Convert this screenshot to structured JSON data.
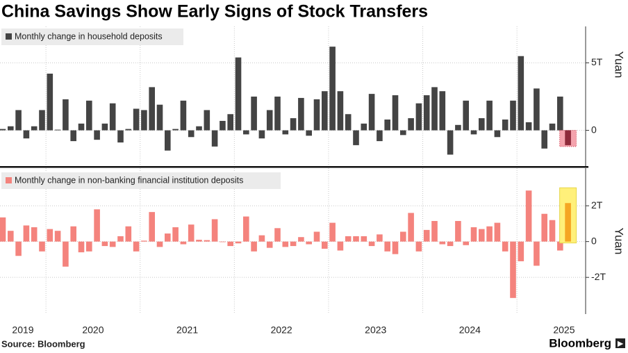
{
  "title": "China Savings Show Early Signs of Stock Transfers",
  "source": "Source: Bloomberg",
  "brand": "Bloomberg",
  "chart_data": [
    {
      "type": "bar",
      "categories": [
        "2019",
        null,
        null,
        null,
        null,
        null,
        null,
        null,
        null,
        null,
        null,
        null,
        "2020",
        null,
        null,
        null,
        null,
        null,
        null,
        null,
        null,
        null,
        null,
        null,
        "2021",
        null,
        null,
        null,
        null,
        null,
        null,
        null,
        null,
        null,
        null,
        null,
        "2022",
        null,
        null,
        null,
        null,
        null,
        null,
        null,
        null,
        null,
        null,
        null,
        "2023",
        null,
        null,
        null,
        null,
        null,
        null,
        null,
        null,
        null,
        null,
        null,
        "2024",
        null,
        null,
        null,
        null,
        null,
        null,
        null,
        null,
        null,
        null,
        null,
        "2025"
      ],
      "series": [
        {
          "name": "Monthly change in household deposits",
          "color": "#444444",
          "highlight_color": "#8e2a3a",
          "highlight_box_color": "#f4a3ad",
          "values": [
            0.1,
            0.3,
            1.5,
            -0.6,
            0.3,
            1.5,
            4.2,
            0.05,
            2.3,
            -0.8,
            0.5,
            2.2,
            -0.7,
            0.5,
            2.0,
            -0.9,
            0.1,
            1.6,
            1.5,
            3.2,
            1.9,
            -1.5,
            0.1,
            2.2,
            -0.5,
            0.3,
            1.5,
            -1.2,
            0.7,
            1.2,
            5.4,
            -0.3,
            2.5,
            -0.6,
            1.5,
            2.5,
            -0.3,
            0.9,
            2.4,
            -0.4,
            2.3,
            2.9,
            6.2,
            2.9,
            1.2,
            -1.1,
            0.5,
            2.7,
            -0.8,
            0.8,
            2.6,
            -0.35,
            0.9,
            2.0,
            2.6,
            3.2,
            2.9,
            -1.8,
            0.4,
            2.2,
            -0.3,
            0.9,
            2.2,
            -0.5,
            0.8,
            2.2,
            5.5,
            0.6,
            3.1,
            -1.35,
            0.5,
            2.5,
            -1.1
          ]
        }
      ],
      "ylim": [
        -2.7,
        7.7
      ],
      "yticks": [
        0,
        {
          "value": 5,
          "label": "5T"
        }
      ],
      "ylabel": "Yuan",
      "grid": true
    },
    {
      "type": "bar",
      "categories": [
        "2019",
        null,
        null,
        null,
        null,
        null,
        null,
        null,
        null,
        null,
        null,
        null,
        "2020",
        null,
        null,
        null,
        null,
        null,
        null,
        null,
        null,
        null,
        null,
        null,
        "2021",
        null,
        null,
        null,
        null,
        null,
        null,
        null,
        null,
        null,
        null,
        null,
        "2022",
        null,
        null,
        null,
        null,
        null,
        null,
        null,
        null,
        null,
        null,
        null,
        "2023",
        null,
        null,
        null,
        null,
        null,
        null,
        null,
        null,
        null,
        null,
        null,
        "2024",
        null,
        null,
        null,
        null,
        null,
        null,
        null,
        null,
        null,
        null,
        null,
        "2025"
      ],
      "series": [
        {
          "name": "Monthly change in non-banking financial institution deposits",
          "color": "#f4837d",
          "highlight_color": "#f5a623",
          "highlight_box_color": "#fff07a",
          "values": [
            1.35,
            0.6,
            -0.8,
            0.9,
            0.8,
            -0.55,
            0.7,
            0.6,
            -1.4,
            0.85,
            -0.6,
            -0.55,
            1.8,
            -0.25,
            -0.3,
            0.3,
            0.85,
            -0.55,
            0.05,
            1.65,
            -0.3,
            0.45,
            0.8,
            -0.15,
            0.95,
            0.1,
            0.08,
            1.25,
            -0.03,
            -0.25,
            -0.1,
            1.4,
            -0.55,
            0.35,
            -0.35,
            0.75,
            -0.3,
            -0.25,
            0.25,
            -0.15,
            0.55,
            -0.4,
            1.05,
            -0.5,
            0.3,
            0.3,
            0.3,
            -0.25,
            0.4,
            -0.55,
            -0.7,
            0.55,
            1.6,
            -0.55,
            0.65,
            1.15,
            -0.15,
            -0.25,
            1.15,
            -0.2,
            0.8,
            0.7,
            0.85,
            1.05,
            -0.55,
            -3.15,
            -1.1,
            2.85,
            -1.35,
            1.55,
            1.2,
            -0.5,
            2.15
          ]
        }
      ],
      "ylim": [
        -4.05,
        4.1
      ],
      "yticks": [
        {
          "value": -2,
          "label": "-2T"
        },
        0,
        {
          "value": 2,
          "label": "2T"
        }
      ],
      "ylabel": "Yuan",
      "grid": true
    }
  ]
}
